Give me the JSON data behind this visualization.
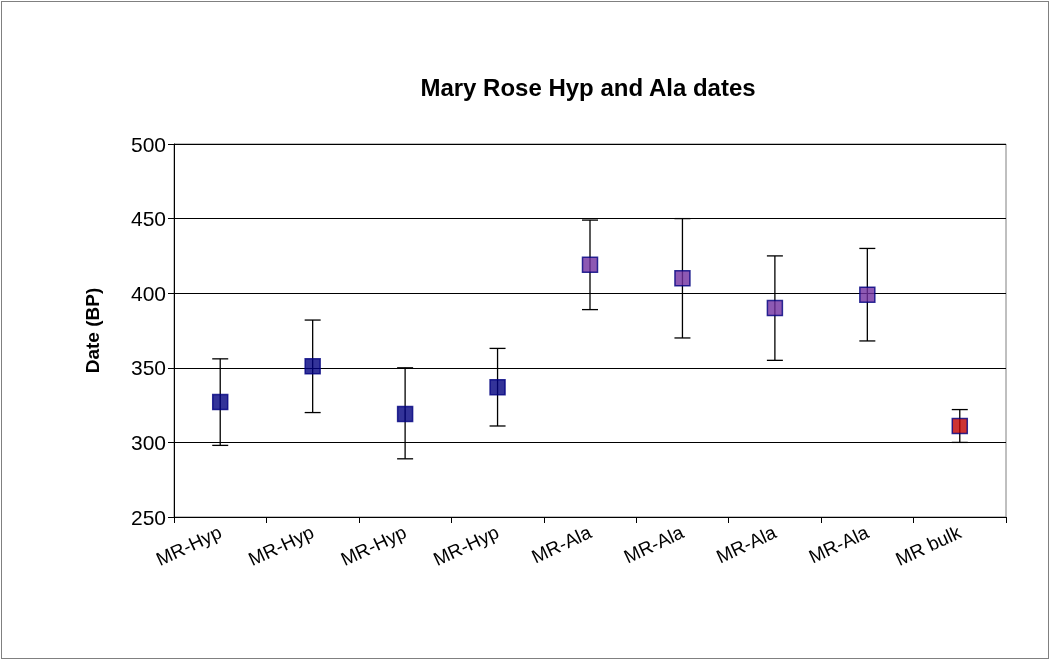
{
  "chart_data": {
    "type": "scatter",
    "title": "Mary Rose Hyp and Ala dates",
    "ylabel": "Date (BP)",
    "categories": [
      "MR-Hyp",
      "MR-Hyp",
      "MR-Hyp",
      "MR-Hyp",
      "MR-Ala",
      "MR-Ala",
      "MR-Ala",
      "MR-Ala",
      "MR bulk"
    ],
    "values": [
      327,
      351,
      319,
      337,
      419,
      410,
      390,
      399,
      311
    ],
    "errors": [
      [
        298,
        356
      ],
      [
        320,
        382
      ],
      [
        289,
        350
      ],
      [
        311,
        363
      ],
      [
        389,
        449
      ],
      [
        370,
        450
      ],
      [
        355,
        425
      ],
      [
        368,
        430
      ],
      [
        300,
        322
      ]
    ],
    "colors": [
      "#000080",
      "#000080",
      "#000080",
      "#000080",
      "#7030a0",
      "#7030a0",
      "#7030a0",
      "#7030a0",
      "#c00000"
    ],
    "ylim": [
      250,
      500
    ],
    "yticks": [
      250,
      300,
      350,
      400,
      450,
      500
    ],
    "grid": "y",
    "marker": "square"
  }
}
